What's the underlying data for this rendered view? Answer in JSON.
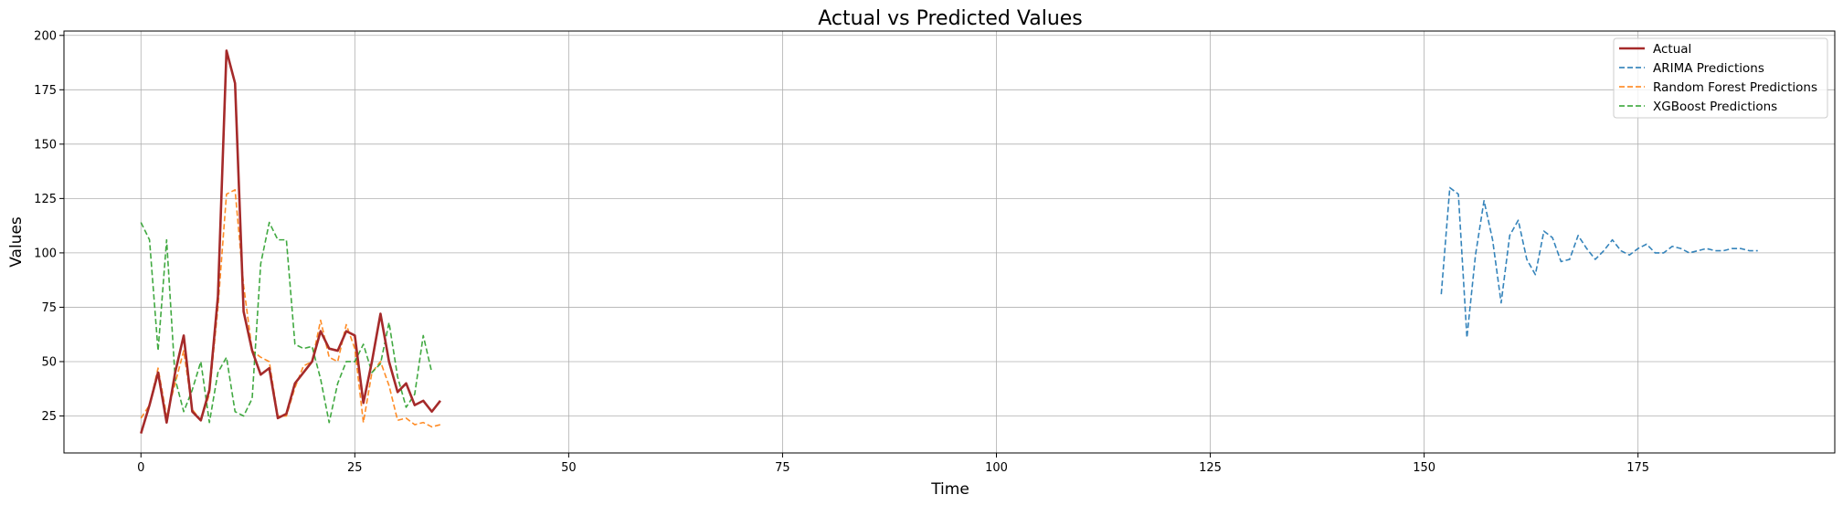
{
  "chart_data": {
    "type": "line",
    "title": "Actual vs Predicted Values",
    "xlabel": "Time",
    "ylabel": "Values",
    "xlim": [
      -9,
      198
    ],
    "ylim": [
      8,
      202
    ],
    "xticks": [
      0,
      25,
      50,
      75,
      100,
      125,
      150,
      175
    ],
    "yticks": [
      25,
      50,
      75,
      100,
      125,
      150,
      175,
      200
    ],
    "grid": true,
    "legend_position": "top-right",
    "series": [
      {
        "name": "Actual",
        "color": "#a52a2a",
        "style": "solid",
        "x_start": 0,
        "values": [
          17,
          30,
          45,
          22,
          45,
          62,
          27,
          23,
          37,
          80,
          193,
          178,
          73,
          55,
          44,
          47,
          24,
          26,
          40,
          45,
          50,
          64,
          56,
          55,
          64,
          62,
          31,
          50,
          72,
          50,
          36,
          40,
          30,
          32,
          27,
          32
        ]
      },
      {
        "name": "ARIMA Predictions",
        "color": "#1f77b4",
        "style": "dashed",
        "x_start": 152,
        "values": [
          81,
          130,
          127,
          61,
          99,
          124,
          106,
          77,
          108,
          115,
          97,
          90,
          110,
          107,
          96,
          97,
          108,
          102,
          97,
          101,
          106,
          101,
          99,
          102,
          104,
          100,
          100,
          103,
          102,
          100,
          101,
          102,
          101,
          101,
          102,
          102,
          101,
          101
        ]
      },
      {
        "name": "Random Forest Predictions",
        "color": "#ff7f0e",
        "style": "dashed",
        "x_start": 0,
        "values": [
          24,
          30,
          47,
          25,
          40,
          55,
          28,
          23,
          35,
          75,
          127,
          129,
          85,
          55,
          52,
          50,
          25,
          25,
          38,
          48,
          50,
          69,
          52,
          50,
          67,
          56,
          22,
          45,
          50,
          39,
          23,
          24,
          21,
          22,
          20,
          21
        ]
      },
      {
        "name": "XGBoost Predictions",
        "color": "#2ca02c",
        "style": "dashed",
        "x_start": 0,
        "values": [
          114,
          106,
          55,
          106,
          42,
          27,
          37,
          50,
          22,
          45,
          52,
          27,
          25,
          33,
          95,
          114,
          106,
          106,
          58,
          56,
          57,
          42,
          22,
          40,
          50,
          50,
          58,
          45,
          49,
          68,
          43,
          29,
          35,
          62,
          45
        ]
      }
    ]
  }
}
